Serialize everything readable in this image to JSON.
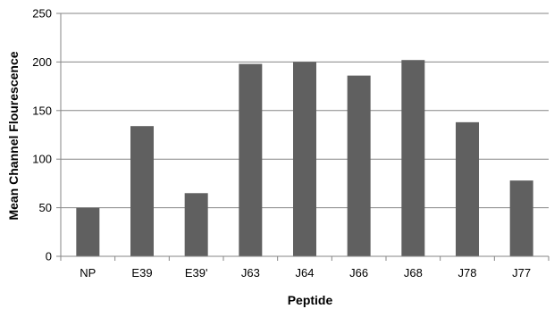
{
  "chart_data": {
    "type": "bar",
    "categories": [
      "NP",
      "E39",
      "E39'",
      "J63",
      "J64",
      "J66",
      "J68",
      "J78",
      "J77"
    ],
    "values": [
      50,
      134,
      65,
      198,
      200,
      186,
      202,
      138,
      78
    ],
    "xlabel": "Peptide",
    "ylabel": "Mean Channel Flourescence",
    "ylim": [
      0,
      250
    ],
    "yticks": [
      0,
      50,
      100,
      150,
      200,
      250
    ],
    "grid": true,
    "legend": "none",
    "bar_color": "#606060",
    "grid_color": "#868686"
  }
}
